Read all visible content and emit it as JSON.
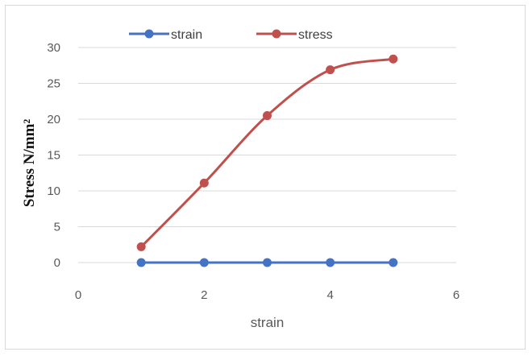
{
  "chart_data": {
    "type": "scatter",
    "title": "",
    "xlabel": "strain",
    "ylabel": "Stress  N/mm²",
    "xlim": [
      0,
      6
    ],
    "ylim": [
      0,
      30
    ],
    "x_ticks": [
      "0",
      "2",
      "4",
      "6"
    ],
    "y_ticks": [
      "0",
      "5",
      "10",
      "15",
      "20",
      "25",
      "30"
    ],
    "grid": "horizontal",
    "legend_position": "top",
    "series": [
      {
        "name": "strain",
        "color": "#4472c4",
        "smooth": false,
        "x": [
          1,
          2,
          3,
          4,
          5
        ],
        "y": [
          0,
          0,
          0,
          0,
          0
        ]
      },
      {
        "name": "stress",
        "color": "#c0504d",
        "smooth": true,
        "x": [
          1,
          2,
          3,
          4,
          5
        ],
        "y": [
          2.2,
          11.1,
          20.5,
          26.9,
          28.4
        ]
      }
    ]
  }
}
